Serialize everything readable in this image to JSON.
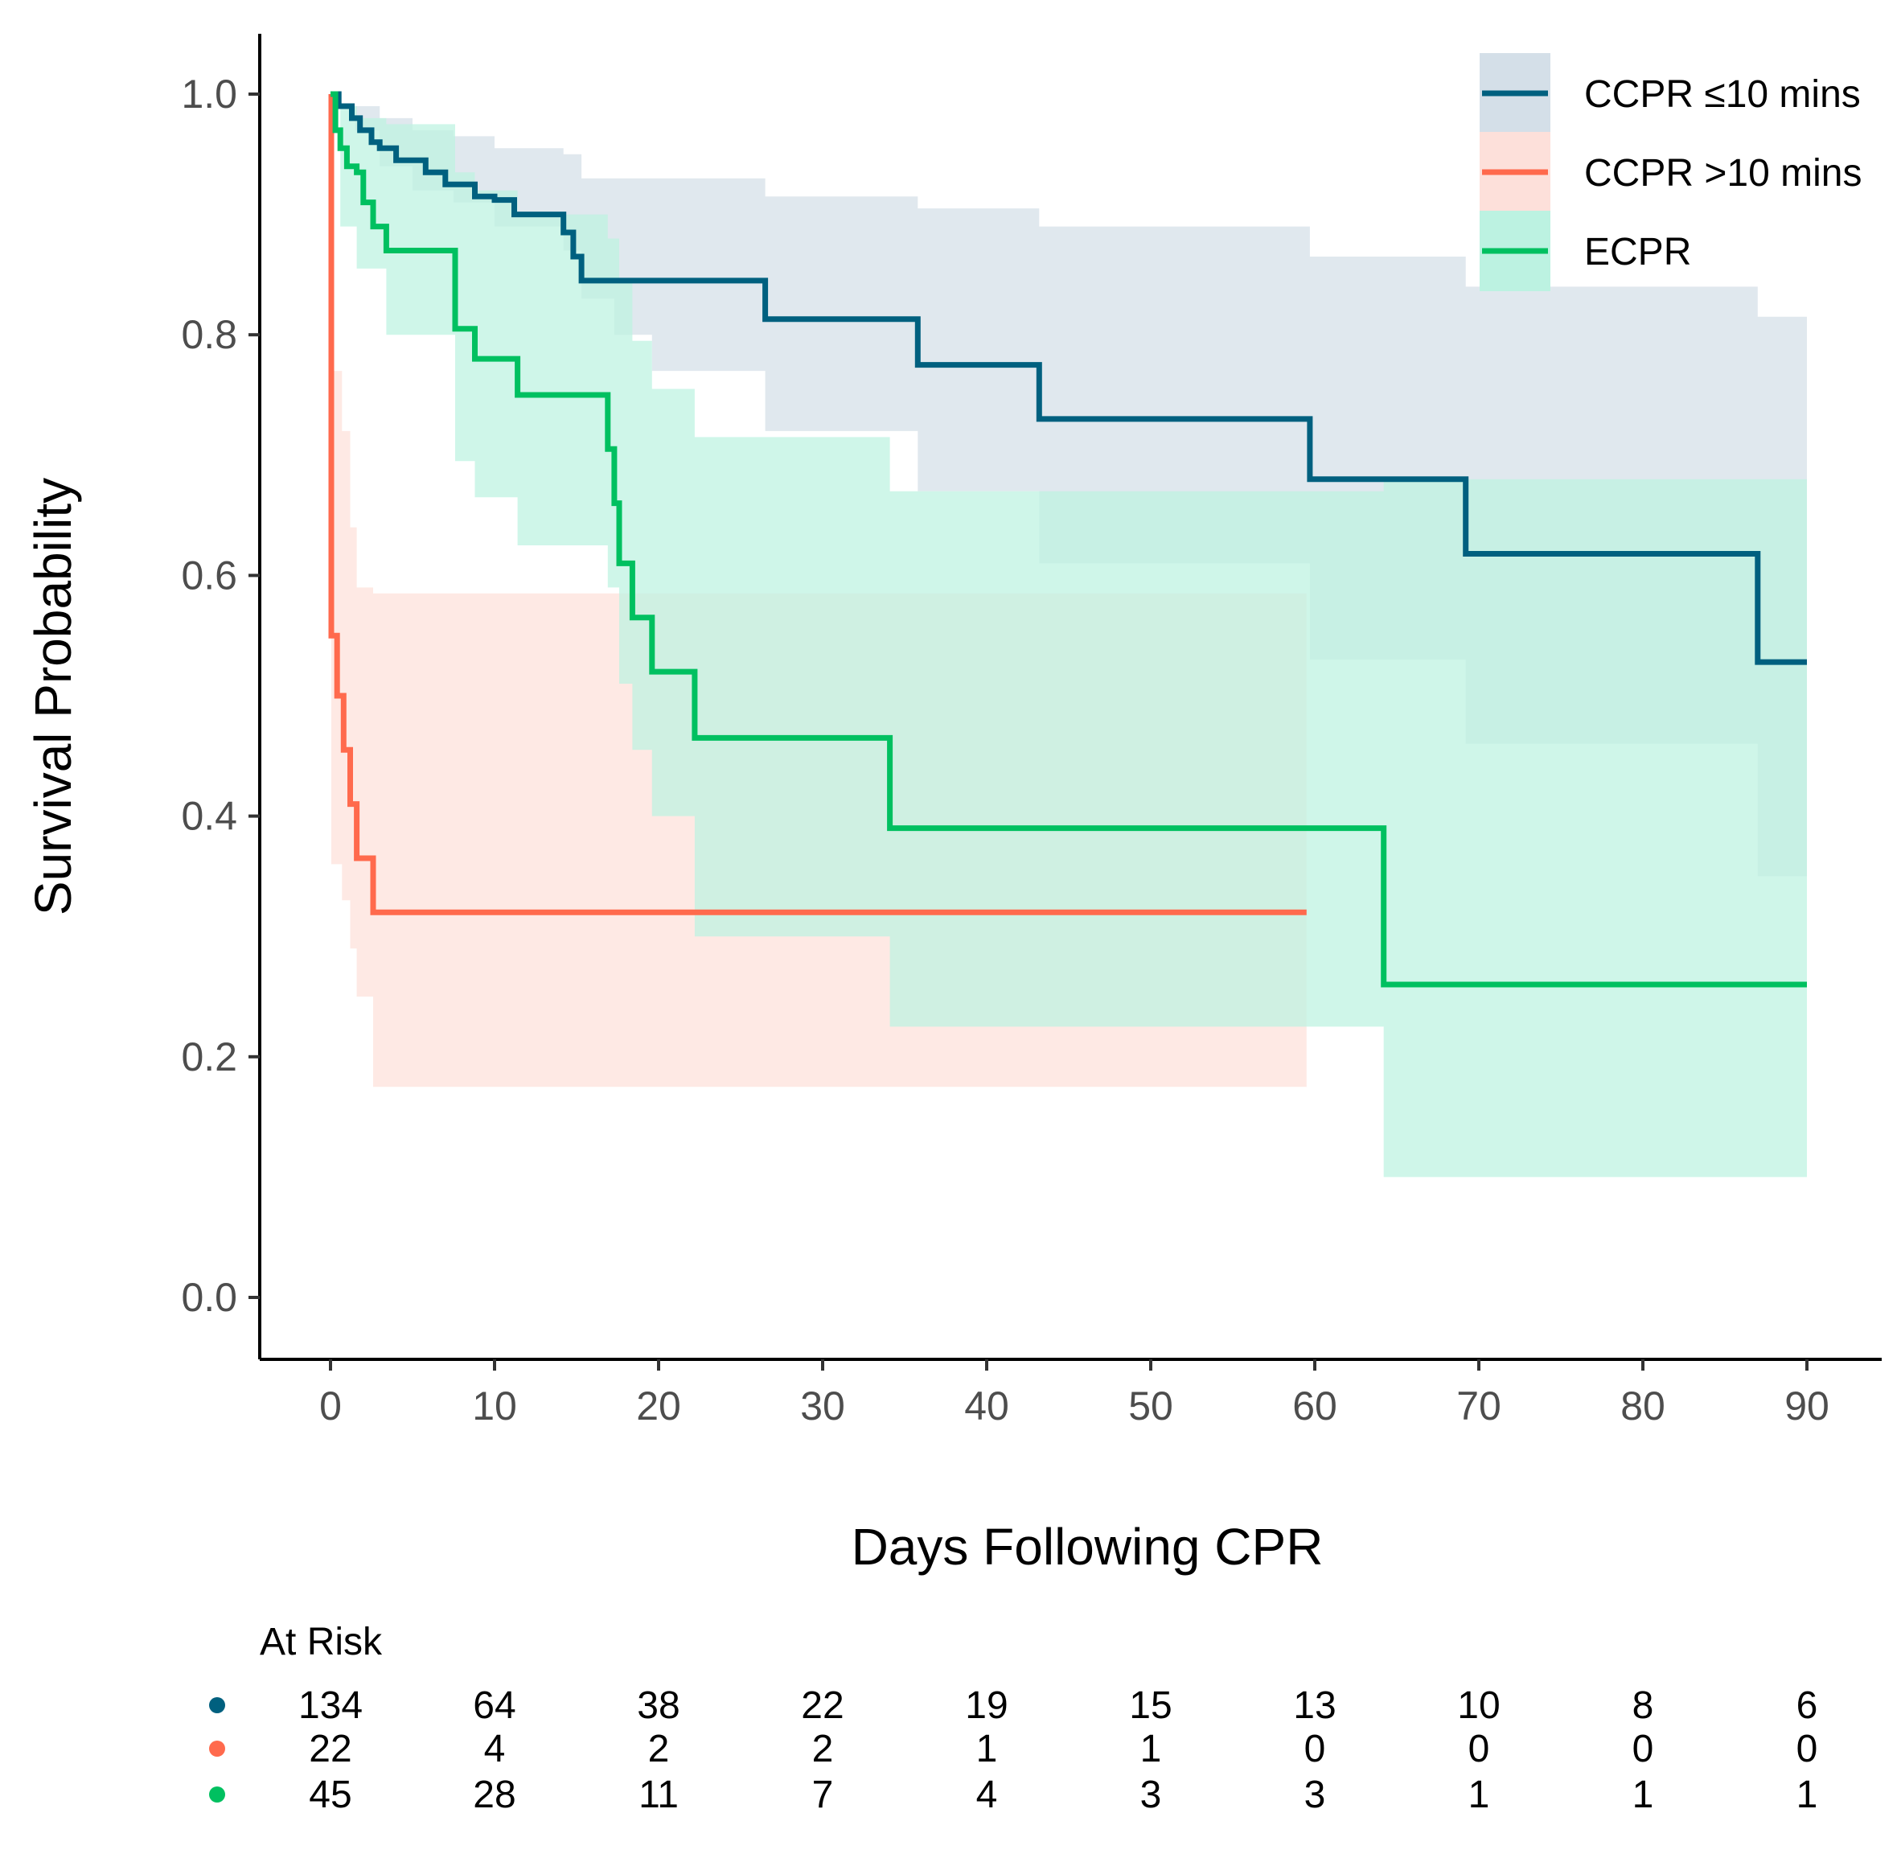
{
  "chart_data": {
    "type": "line",
    "title": "",
    "xlabel": "Days Following CPR",
    "ylabel": "Survival Probability",
    "xlim": [
      0,
      90
    ],
    "ylim": [
      0,
      1
    ],
    "x_ticks": [
      0,
      10,
      20,
      30,
      40,
      50,
      60,
      70,
      80,
      90
    ],
    "x_tick_labels": [
      "0",
      "10",
      "20",
      "30",
      "40",
      "50",
      "60",
      "70",
      "80",
      "90"
    ],
    "y_ticks": [
      0.0,
      0.2,
      0.4,
      0.6,
      0.8,
      1.0
    ],
    "y_tick_labels": [
      "0.0",
      "0.2",
      "0.4",
      "0.6",
      "0.8",
      "1.0"
    ],
    "grid": false,
    "legend_position": "top-right",
    "series": [
      {
        "name": "CCPR ≤10 mins",
        "color": "#00607f",
        "band_color": "#d4dfe8",
        "steps": [
          [
            0,
            1.0
          ],
          [
            0.5,
            0.99
          ],
          [
            1.3,
            0.98
          ],
          [
            1.8,
            0.97
          ],
          [
            2.5,
            0.96
          ],
          [
            3.0,
            0.955
          ],
          [
            4.0,
            0.945
          ],
          [
            5.8,
            0.935
          ],
          [
            7.0,
            0.925
          ],
          [
            8.8,
            0.915
          ],
          [
            10.0,
            0.912
          ],
          [
            11.2,
            0.9
          ],
          [
            14.2,
            0.885
          ],
          [
            14.8,
            0.865
          ],
          [
            15.3,
            0.845
          ],
          [
            26.5,
            0.813
          ],
          [
            35.8,
            0.775
          ],
          [
            43.2,
            0.73
          ],
          [
            59.7,
            0.68
          ],
          [
            69.2,
            0.618
          ],
          [
            87.0,
            0.528
          ],
          [
            90.0,
            0.528
          ]
        ],
        "band": [
          [
            0,
            1.0,
            1.0
          ],
          [
            1.5,
            0.99,
            0.97
          ],
          [
            3.0,
            0.98,
            0.94
          ],
          [
            5.0,
            0.97,
            0.92
          ],
          [
            7.5,
            0.965,
            0.91
          ],
          [
            10.0,
            0.955,
            0.89
          ],
          [
            14.2,
            0.95,
            0.87
          ],
          [
            15.3,
            0.93,
            0.83
          ],
          [
            17.3,
            0.93,
            0.8
          ],
          [
            19.6,
            0.93,
            0.77
          ],
          [
            26.5,
            0.915,
            0.72
          ],
          [
            35.8,
            0.905,
            0.67
          ],
          [
            43.2,
            0.89,
            0.61
          ],
          [
            59.7,
            0.865,
            0.53
          ],
          [
            69.2,
            0.84,
            0.46
          ],
          [
            87.0,
            0.815,
            0.35
          ],
          [
            90.0,
            0.815,
            0.35
          ]
        ],
        "at_risk": [
          134,
          64,
          38,
          22,
          19,
          15,
          13,
          10,
          8,
          6
        ]
      },
      {
        "name": "CCPR >10 mins",
        "color": "#ff6a4d",
        "band_color": "#fde0da",
        "steps": [
          [
            0,
            1.0
          ],
          [
            0.05,
            0.55
          ],
          [
            0.4,
            0.5
          ],
          [
            0.8,
            0.455
          ],
          [
            1.2,
            0.41
          ],
          [
            1.6,
            0.365
          ],
          [
            2.6,
            0.32
          ],
          [
            59.5,
            0.32
          ]
        ],
        "band": [
          [
            0,
            1.0,
            1.0
          ],
          [
            0.05,
            0.77,
            0.36
          ],
          [
            0.7,
            0.72,
            0.33
          ],
          [
            1.2,
            0.64,
            0.29
          ],
          [
            1.6,
            0.59,
            0.25
          ],
          [
            2.6,
            0.585,
            0.175
          ],
          [
            59.5,
            0.585,
            0.175
          ]
        ],
        "at_risk": [
          22,
          4,
          2,
          2,
          1,
          1,
          0,
          0,
          0,
          0
        ]
      },
      {
        "name": "ECPR",
        "color": "#00c060",
        "band_color": "#bcf2e1",
        "steps": [
          [
            0,
            1.0
          ],
          [
            0.3,
            0.97
          ],
          [
            0.6,
            0.955
          ],
          [
            1.0,
            0.94
          ],
          [
            1.6,
            0.935
          ],
          [
            2.0,
            0.91
          ],
          [
            2.6,
            0.89
          ],
          [
            3.4,
            0.87
          ],
          [
            7.6,
            0.805
          ],
          [
            8.8,
            0.78
          ],
          [
            11.4,
            0.75
          ],
          [
            16.9,
            0.705
          ],
          [
            17.3,
            0.66
          ],
          [
            17.6,
            0.61
          ],
          [
            18.4,
            0.565
          ],
          [
            19.6,
            0.52
          ],
          [
            22.2,
            0.465
          ],
          [
            34.1,
            0.39
          ],
          [
            64.2,
            0.26
          ],
          [
            90.0,
            0.26
          ]
        ],
        "band": [
          [
            0,
            1.0,
            1.0
          ],
          [
            0.6,
            0.99,
            0.89
          ],
          [
            1.6,
            0.98,
            0.855
          ],
          [
            3.4,
            0.975,
            0.8
          ],
          [
            7.6,
            0.935,
            0.695
          ],
          [
            8.8,
            0.92,
            0.665
          ],
          [
            11.4,
            0.9,
            0.625
          ],
          [
            16.9,
            0.88,
            0.59
          ],
          [
            17.6,
            0.845,
            0.51
          ],
          [
            18.4,
            0.795,
            0.455
          ],
          [
            19.6,
            0.755,
            0.4
          ],
          [
            22.2,
            0.715,
            0.3
          ],
          [
            34.1,
            0.67,
            0.225
          ],
          [
            64.2,
            0.68,
            0.1
          ],
          [
            90.0,
            0.68,
            0.1
          ]
        ],
        "at_risk": [
          45,
          28,
          11,
          7,
          4,
          3,
          3,
          1,
          1,
          1
        ]
      }
    ],
    "risk_table": {
      "title": "At Risk",
      "times": [
        0,
        10,
        20,
        30,
        40,
        50,
        60,
        70,
        80,
        90
      ]
    }
  }
}
